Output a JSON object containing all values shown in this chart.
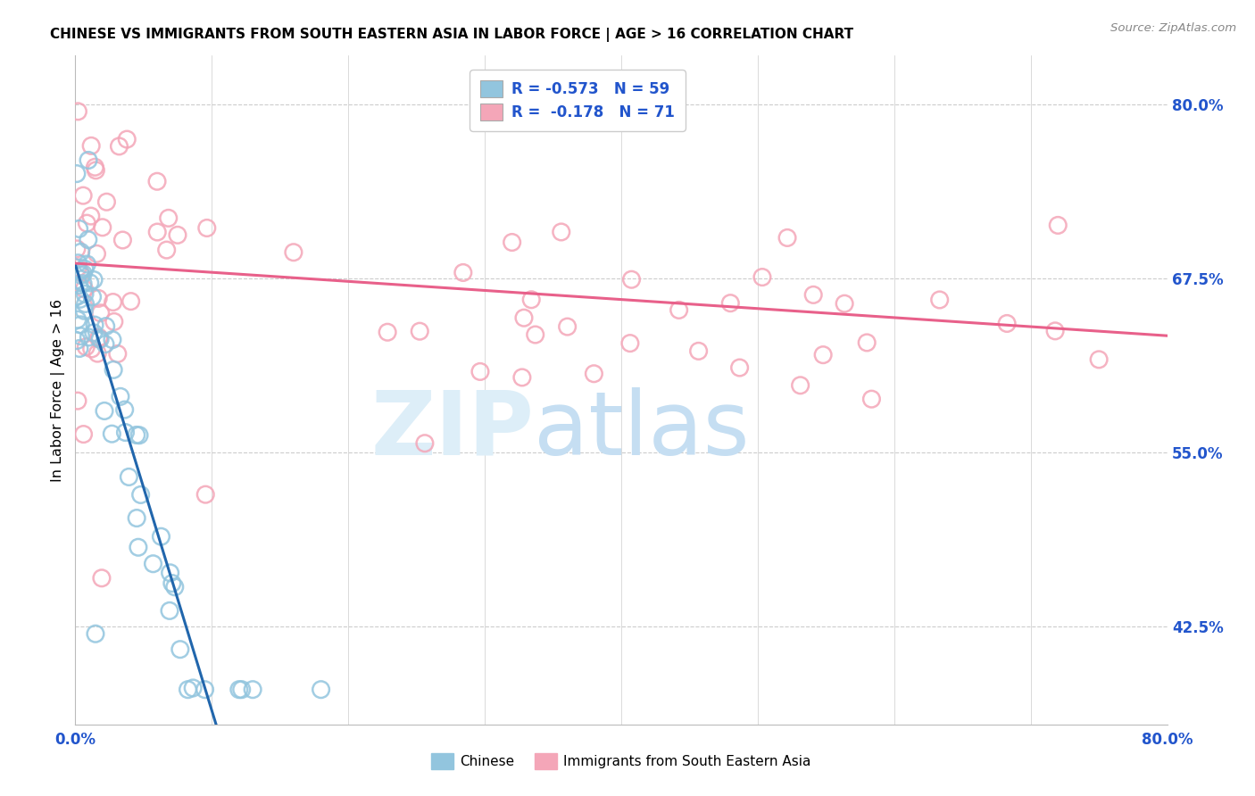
{
  "title": "CHINESE VS IMMIGRANTS FROM SOUTH EASTERN ASIA IN LABOR FORCE | AGE > 16 CORRELATION CHART",
  "source": "Source: ZipAtlas.com",
  "ylabel": "In Labor Force | Age > 16",
  "xmin": 0.0,
  "xmax": 0.8,
  "ymin": 0.355,
  "ymax": 0.835,
  "yticks": [
    0.425,
    0.55,
    0.675,
    0.8
  ],
  "ytick_labels": [
    "42.5%",
    "55.0%",
    "67.5%",
    "80.0%"
  ],
  "legend_r_chinese": "-0.573",
  "legend_n_chinese": "59",
  "legend_r_sea": "-0.178",
  "legend_n_sea": "71",
  "color_chinese": "#92c5de",
  "color_sea": "#f4a6b8",
  "color_trend_chinese": "#2166ac",
  "color_trend_sea": "#e8608a",
  "color_trend_chinese_ext": "#92c5de",
  "blue_label_color": "#2255cc",
  "grid_color": "#cccccc",
  "spine_color": "#bbbbbb"
}
